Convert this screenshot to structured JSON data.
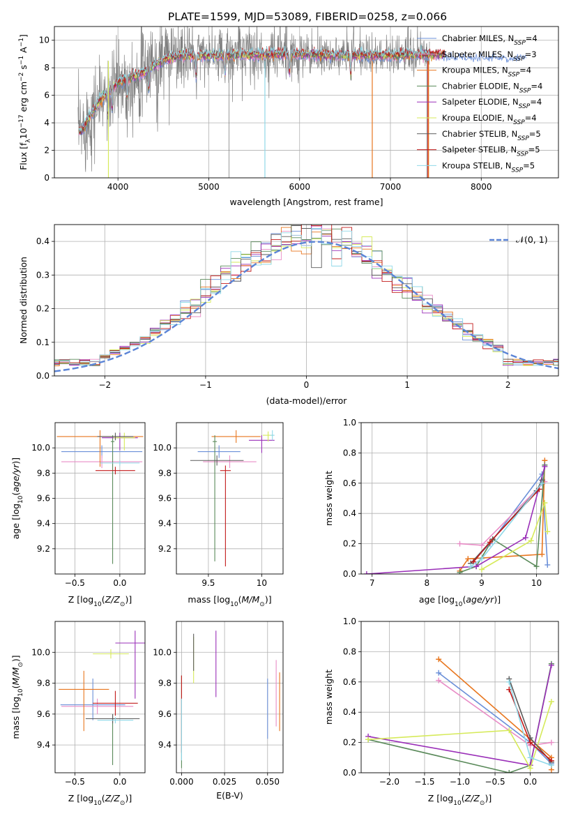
{
  "figure": {
    "title": "PLATE=1599, MJD=53089, FIBERID=0258, z=0.066"
  },
  "models": [
    {
      "name": "Chabrier MILES",
      "nssp": "4",
      "color": "#6a8fd8"
    },
    {
      "name": "Salpeter MILES",
      "nssp": "3",
      "color": "#e88cc6"
    },
    {
      "name": "Kroupa MILES",
      "nssp": "4",
      "color": "#e8761e"
    },
    {
      "name": "Chabrier ELODIE",
      "nssp": "4",
      "color": "#5a8a5a"
    },
    {
      "name": "Salpeter ELODIE",
      "nssp": "4",
      "color": "#9a2fb8"
    },
    {
      "name": "Kroupa ELODIE",
      "nssp": "4",
      "color": "#d6ea5a"
    },
    {
      "name": "Chabrier STELIB",
      "nssp": "5",
      "color": "#5a5a5a"
    },
    {
      "name": "Salpeter STELIB",
      "nssp": "5",
      "color": "#c21a1a"
    },
    {
      "name": "Kroupa STELIB",
      "nssp": "5",
      "color": "#8fd8e8"
    }
  ],
  "chart_data": [
    {
      "id": "spectrum",
      "type": "line",
      "xlabel": "wavelength [Angstrom, rest frame]",
      "ylabel": "Flux [f_λ 10^-17 erg cm^-2 s^-1 A^-1]",
      "xlim": [
        3300,
        8850
      ],
      "ylim": [
        0,
        11
      ],
      "xticks": [
        4000,
        5000,
        6000,
        7000,
        8000
      ],
      "yticks": [
        0,
        2,
        4,
        6,
        8,
        10
      ],
      "legend": "top-right",
      "data_color": "#808080",
      "model_continuum": [
        [
          3600,
          3.4
        ],
        [
          3700,
          4.6
        ],
        [
          3800,
          5.6
        ],
        [
          3900,
          6.3
        ],
        [
          4000,
          6.9
        ],
        [
          4100,
          7.2
        ],
        [
          4300,
          7.7
        ],
        [
          4500,
          8.6
        ],
        [
          4700,
          8.9
        ],
        [
          5000,
          8.9
        ],
        [
          5300,
          8.9
        ],
        [
          5600,
          9.0
        ],
        [
          6000,
          9.0
        ],
        [
          6500,
          8.9
        ],
        [
          7000,
          8.9
        ],
        [
          7500,
          9.0
        ],
        [
          8000,
          8.9
        ],
        [
          8400,
          8.9
        ]
      ],
      "absorption_lines": [
        [
          3890,
          0.0
        ],
        [
          3935,
          2.2
        ],
        [
          4100,
          3.6
        ],
        [
          4340,
          4.4
        ],
        [
          4860,
          6.2
        ],
        [
          5180,
          6.4
        ],
        [
          5890,
          7.0
        ],
        [
          6563,
          8.0
        ]
      ],
      "spikes": [
        [
          5222,
          0.0
        ],
        [
          5618,
          0.0
        ],
        [
          6800,
          0.0
        ],
        [
          7400,
          0.0
        ]
      ]
    },
    {
      "id": "residuals",
      "type": "histogram",
      "xlabel": "(data-model)/error",
      "ylabel": "Normed distribution",
      "xlim": [
        -2.5,
        2.5
      ],
      "ylim": [
        0,
        0.45
      ],
      "xticks": [
        -2,
        -1,
        0,
        1,
        2
      ],
      "yticks": [
        0.0,
        0.1,
        0.2,
        0.3,
        0.4
      ],
      "legend": "top-right",
      "gaussian_label": "𝒩(0, 1)",
      "gaussian_color": "#5b84d6",
      "bin_width": 0.1
    },
    {
      "id": "age_vs_Z",
      "type": "errorbar",
      "xlabel": "Z [log10(Z/Z⊙)]",
      "ylabel": "age [log10(age/yr)]",
      "xlim": [
        -0.72,
        0.28
      ],
      "ylim": [
        9.0,
        10.2
      ],
      "xticks": [
        -0.5,
        0.0
      ],
      "xtick_labels": [
        "−0.5",
        "0.0"
      ],
      "yticks": [
        9.2,
        9.4,
        9.6,
        9.8,
        10.0
      ],
      "points": [
        {
          "model": 0,
          "x": -0.2,
          "xerr": 0.45,
          "y": 9.97,
          "yerr_lo": 0.05,
          "yerr_hi": 0.05
        },
        {
          "model": 1,
          "x": -0.2,
          "xerr": 0.45,
          "y": 9.89,
          "yerr_lo": 0.05,
          "yerr_hi": 0.05
        },
        {
          "model": 2,
          "x": -0.22,
          "xerr": 0.48,
          "y": 10.09,
          "yerr_lo": 0.24,
          "yerr_hi": 0.05
        },
        {
          "model": 3,
          "x": -0.08,
          "xerr": 0.02,
          "y": 10.05,
          "yerr_lo": 0.97,
          "yerr_hi": 0.05
        },
        {
          "model": 4,
          "x": 0.0,
          "xerr": 0.2,
          "y": 10.08,
          "yerr_lo": 0.1,
          "yerr_hi": 0.04
        },
        {
          "model": 5,
          "x": 0.05,
          "xerr": 0.12,
          "y": 10.08,
          "yerr_lo": 0.1,
          "yerr_hi": 0.04
        },
        {
          "model": 6,
          "x": -0.05,
          "xerr": 0.2,
          "y": 10.09,
          "yerr_lo": 0.03,
          "yerr_hi": 0.03
        },
        {
          "model": 7,
          "x": -0.05,
          "xerr": 0.22,
          "y": 9.82,
          "yerr_lo": 0.03,
          "yerr_hi": 0.03
        },
        {
          "model": 8,
          "x": 0.0,
          "xerr": 0.22,
          "y": 9.88,
          "yerr_lo": 0.02,
          "yerr_hi": 0.02
        }
      ]
    },
    {
      "id": "age_vs_mass",
      "type": "errorbar",
      "xlabel": "mass [log10(M/M⊙)]",
      "ylabel": "",
      "xlim": [
        9.2,
        10.2
      ],
      "ylim": [
        9.0,
        10.2
      ],
      "xticks": [
        9.5,
        10.0
      ],
      "yticks": [
        9.2,
        9.4,
        9.6,
        9.8,
        10.0
      ],
      "points": [
        {
          "model": 0,
          "x": 9.6,
          "xerr": 0.2,
          "y": 9.97,
          "yerr_lo": 0.05,
          "yerr_hi": 0.05
        },
        {
          "model": 1,
          "x": 9.7,
          "xerr": 0.25,
          "y": 9.89,
          "yerr_lo": 0.05,
          "yerr_hi": 0.05
        },
        {
          "model": 2,
          "x": 9.76,
          "xerr": 0.23,
          "y": 10.09,
          "yerr_lo": 0.05,
          "yerr_hi": 0.05
        },
        {
          "model": 3,
          "x": 9.56,
          "xerr": 0.02,
          "y": 10.05,
          "yerr_lo": 0.95,
          "yerr_hi": 0.05
        },
        {
          "model": 4,
          "x": 10.0,
          "xerr": 0.12,
          "y": 10.06,
          "yerr_lo": 0.1,
          "yerr_hi": 0.04
        },
        {
          "model": 5,
          "x": 10.06,
          "xerr": 0.05,
          "y": 10.1,
          "yerr_lo": 0.05,
          "yerr_hi": 0.03
        },
        {
          "model": 6,
          "x": 9.58,
          "xerr": 0.25,
          "y": 9.9,
          "yerr_lo": 0.04,
          "yerr_hi": 0.04
        },
        {
          "model": 7,
          "x": 9.66,
          "xerr": 0.05,
          "y": 9.82,
          "yerr_lo": 0.76,
          "yerr_hi": 0.04
        },
        {
          "model": 8,
          "x": 10.1,
          "xerr": 0.02,
          "y": 10.1,
          "yerr_lo": 0.04,
          "yerr_hi": 0.04
        }
      ]
    },
    {
      "id": "weight_vs_age",
      "type": "line",
      "xlabel": "age [log10(age/yr)]",
      "ylabel": "mass weight",
      "xlim": [
        6.8,
        10.4
      ],
      "ylim": [
        0.0,
        1.0
      ],
      "xticks": [
        7,
        8,
        9,
        10
      ],
      "yticks": [
        0.0,
        0.2,
        0.4,
        0.6,
        0.8,
        1.0
      ],
      "series": [
        {
          "model": 0,
          "points": [
            [
              8.8,
              0.07
            ],
            [
              9.15,
              0.2
            ],
            [
              10.1,
              0.66
            ],
            [
              10.2,
              0.06
            ]
          ]
        },
        {
          "model": 1,
          "points": [
            [
              8.6,
              0.2
            ],
            [
              9.0,
              0.19
            ],
            [
              10.15,
              0.61
            ]
          ]
        },
        {
          "model": 2,
          "points": [
            [
              8.6,
              0.02
            ],
            [
              8.75,
              0.1
            ],
            [
              10.1,
              0.13
            ],
            [
              10.15,
              0.75
            ]
          ]
        },
        {
          "model": 3,
          "points": [
            [
              8.6,
              0.01
            ],
            [
              8.9,
              0.05
            ],
            [
              9.2,
              0.23
            ],
            [
              10.0,
              0.05
            ],
            [
              10.15,
              0.72
            ]
          ]
        },
        {
          "model": 4,
          "points": [
            [
              6.9,
              0.0
            ],
            [
              8.9,
              0.05
            ],
            [
              9.8,
              0.24
            ],
            [
              10.15,
              0.71
            ]
          ]
        },
        {
          "model": 5,
          "points": [
            [
              9.0,
              0.03
            ],
            [
              9.9,
              0.22
            ],
            [
              10.15,
              0.47
            ],
            [
              10.2,
              0.28
            ]
          ]
        },
        {
          "model": 6,
          "points": [
            [
              8.8,
              0.07
            ],
            [
              9.2,
              0.23
            ],
            [
              10.0,
              0.55
            ],
            [
              10.1,
              0.62
            ]
          ]
        },
        {
          "model": 7,
          "points": [
            [
              8.85,
              0.08
            ],
            [
              9.15,
              0.21
            ],
            [
              10.05,
              0.56
            ]
          ]
        },
        {
          "model": 8,
          "points": [
            [
              8.8,
              0.05
            ],
            [
              9.0,
              0.1
            ],
            [
              10.1,
              0.6
            ]
          ]
        }
      ]
    },
    {
      "id": "mass_vs_Z",
      "type": "errorbar",
      "xlabel": "Z [log10(Z/Z⊙)]",
      "ylabel": "mass [log10(M/M⊙)]",
      "xlim": [
        -0.72,
        0.28
      ],
      "ylim": [
        9.22,
        10.2
      ],
      "xticks": [
        -0.5,
        0.0
      ],
      "xtick_labels": [
        "−0.5",
        "0.0"
      ],
      "yticks": [
        9.4,
        9.6,
        9.8,
        10.0
      ],
      "points": [
        {
          "model": 0,
          "x": -0.3,
          "xerr": 0.36,
          "y": 9.66,
          "yerr_lo": 0.1,
          "yerr_hi": 0.17
        },
        {
          "model": 1,
          "x": -0.25,
          "xerr": 0.4,
          "y": 9.65,
          "yerr_lo": 0.05,
          "yerr_hi": 0.05
        },
        {
          "model": 2,
          "x": -0.4,
          "xerr": 0.28,
          "y": 9.76,
          "yerr_lo": 0.27,
          "yerr_hi": 0.12
        },
        {
          "model": 3,
          "x": -0.08,
          "xerr": 0.02,
          "y": 9.57,
          "yerr_lo": 0.3,
          "yerr_hi": 0.03
        },
        {
          "model": 4,
          "x": 0.17,
          "xerr": 0.22,
          "y": 10.06,
          "yerr_lo": 0.36,
          "yerr_hi": 0.08
        },
        {
          "model": 5,
          "x": -0.1,
          "xerr": 0.2,
          "y": 9.99,
          "yerr_lo": 0.03,
          "yerr_hi": 0.03
        },
        {
          "model": 6,
          "x": -0.08,
          "xerr": 0.3,
          "y": 9.57,
          "yerr_lo": 0.03,
          "yerr_hi": 0.03
        },
        {
          "model": 7,
          "x": -0.05,
          "xerr": 0.25,
          "y": 9.67,
          "yerr_lo": 0.08,
          "yerr_hi": 0.08
        },
        {
          "model": 8,
          "x": -0.05,
          "xerr": 0.2,
          "y": 9.56,
          "yerr_lo": 0.02,
          "yerr_hi": 0.02
        }
      ]
    },
    {
      "id": "mass_vs_ebv",
      "type": "errorbar",
      "xlabel": "E(B-V)",
      "ylabel": "",
      "xlim": [
        -0.003,
        0.059
      ],
      "ylim": [
        9.22,
        10.2
      ],
      "xticks": [
        0.0,
        0.025,
        0.05
      ],
      "xtick_labels": [
        "0.000",
        "0.025",
        "0.050"
      ],
      "yticks": [
        9.4,
        9.6,
        9.8,
        10.0
      ],
      "points": [
        {
          "model": 0,
          "x": 0.05,
          "y": 9.63,
          "yerr_lo": 0.19,
          "yerr_hi": 0.2
        },
        {
          "model": 1,
          "x": 0.055,
          "y": 9.72,
          "yerr_lo": 0.2,
          "yerr_hi": 0.23
        },
        {
          "model": 2,
          "x": 0.057,
          "y": 9.68,
          "yerr_lo": 0.19,
          "yerr_hi": 0.19
        },
        {
          "model": 3,
          "x": 0.0,
          "y": 9.55,
          "yerr_lo": 0.3,
          "yerr_hi": 0.3
        },
        {
          "model": 4,
          "x": 0.02,
          "y": 9.92,
          "yerr_lo": 0.21,
          "yerr_hi": 0.22
        },
        {
          "model": 5,
          "x": 0.007,
          "y": 9.95,
          "yerr_lo": 0.15,
          "yerr_hi": 0.15
        },
        {
          "model": 6,
          "x": 0.007,
          "y": 10.0,
          "yerr_lo": 0.12,
          "yerr_hi": 0.12
        },
        {
          "model": 7,
          "x": 0.0,
          "y": 9.6,
          "yerr_lo": 0.25,
          "yerr_hi": 0.25
        },
        {
          "model": 8,
          "x": 0.0,
          "y": 9.5,
          "yerr_lo": 0.2,
          "yerr_hi": 0.2
        }
      ]
    },
    {
      "id": "weight_vs_Z",
      "type": "line",
      "xlabel": "Z [log10(Z/Z⊙)]",
      "ylabel": "mass weight",
      "xlim": [
        -2.4,
        0.4
      ],
      "ylim": [
        0.0,
        1.0
      ],
      "xticks": [
        -2.0,
        -1.5,
        -1.0,
        -0.5,
        0.0
      ],
      "xtick_labels": [
        "−2.0",
        "−1.5",
        "−1.0",
        "−0.5",
        "0.0"
      ],
      "yticks": [
        0.0,
        0.2,
        0.4,
        0.6,
        0.8,
        1.0
      ],
      "series": [
        {
          "model": 0,
          "points": [
            [
              -1.3,
              0.66
            ],
            [
              0.0,
              0.2
            ],
            [
              0.3,
              0.06
            ]
          ]
        },
        {
          "model": 1,
          "points": [
            [
              -1.3,
              0.61
            ],
            [
              0.0,
              0.18
            ],
            [
              0.3,
              0.2
            ]
          ]
        },
        {
          "model": 2,
          "points": [
            [
              -1.3,
              0.75
            ],
            [
              0.3,
              0.1
            ],
            [
              0.3,
              0.02
            ]
          ]
        },
        {
          "model": 3,
          "points": [
            [
              -2.3,
              0.22
            ],
            [
              -0.3,
              0.0
            ],
            [
              0.0,
              0.05
            ],
            [
              0.3,
              0.72
            ]
          ]
        },
        {
          "model": 4,
          "points": [
            [
              -2.3,
              0.24
            ],
            [
              0.0,
              0.05
            ],
            [
              0.3,
              0.71
            ]
          ]
        },
        {
          "model": 5,
          "points": [
            [
              -2.3,
              0.22
            ],
            [
              -0.3,
              0.28
            ],
            [
              0.0,
              0.03
            ],
            [
              0.3,
              0.47
            ]
          ]
        },
        {
          "model": 6,
          "points": [
            [
              -0.3,
              0.62
            ],
            [
              0.0,
              0.23
            ],
            [
              0.3,
              0.07
            ]
          ]
        },
        {
          "model": 7,
          "points": [
            [
              -0.3,
              0.55
            ],
            [
              0.0,
              0.2
            ],
            [
              0.3,
              0.08
            ]
          ]
        },
        {
          "model": 8,
          "points": [
            [
              -0.3,
              0.6
            ],
            [
              0.0,
              0.1
            ],
            [
              0.3,
              0.05
            ]
          ]
        }
      ]
    }
  ]
}
